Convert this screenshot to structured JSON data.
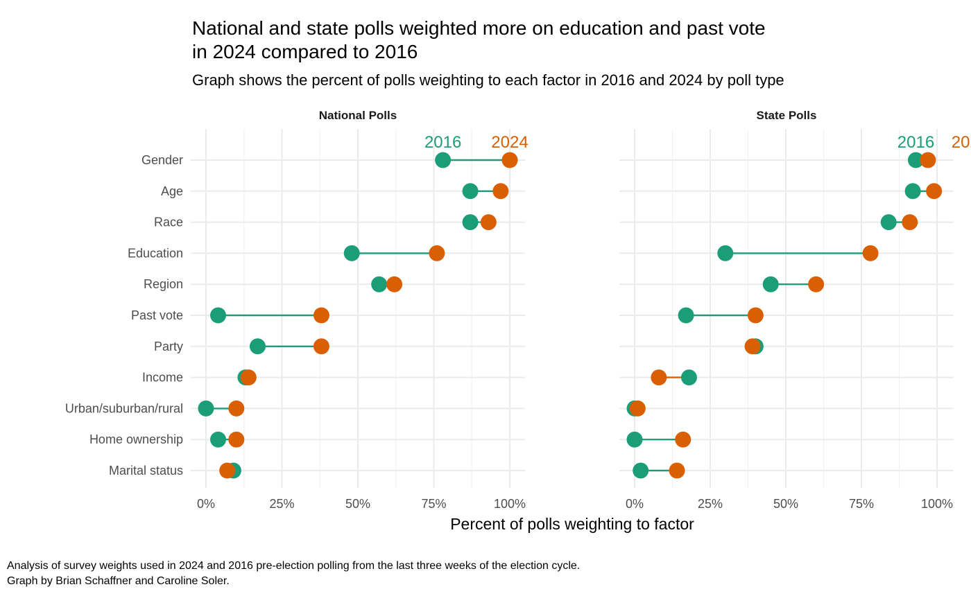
{
  "title_lines": [
    "National and state polls weighted more on education and past vote",
    "in 2024 compared to 2016"
  ],
  "subtitle": "Graph shows the percent of polls weighting to each factor in 2016 and 2024 by poll type",
  "xlabel": "Percent of polls weighting to factor",
  "caption_lines": [
    "Analysis of survey weights used in 2024 and 2016 pre-election polling from the last three weeks of the election cycle.",
    "Graph by Brian Schaffner and Caroline Soler."
  ],
  "colors": {
    "y2016": "#1b9e77",
    "y2024": "#d95f02"
  },
  "chart_data": {
    "type": "dumbbell",
    "categories": [
      "Gender",
      "Age",
      "Race",
      "Education",
      "Region",
      "Past vote",
      "Party",
      "Income",
      "Urban/suburban/rural",
      "Home ownership",
      "Marital status"
    ],
    "xlim": [
      0,
      100
    ],
    "x_ticks": [
      0,
      25,
      50,
      75,
      100
    ],
    "x_tick_labels": [
      "0%",
      "25%",
      "50%",
      "75%",
      "100%"
    ],
    "series_labels": [
      "2016",
      "2024"
    ],
    "facets": [
      {
        "name": "National Polls",
        "v2016": [
          78,
          87,
          87,
          48,
          57,
          4,
          17,
          13,
          0,
          4,
          9
        ],
        "v2024": [
          100,
          97,
          93,
          76,
          62,
          38,
          38,
          14,
          10,
          10,
          7
        ]
      },
      {
        "name": "State Polls",
        "v2016": [
          93,
          92,
          84,
          30,
          45,
          17,
          40,
          18,
          0,
          0,
          2
        ],
        "v2024": [
          97,
          99,
          91,
          78,
          60,
          40,
          39,
          8,
          1,
          16,
          14
        ]
      }
    ]
  }
}
